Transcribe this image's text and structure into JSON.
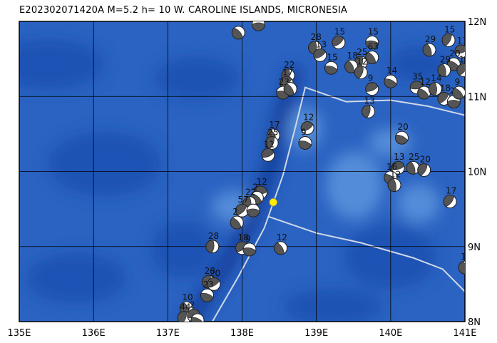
{
  "title": "E202302071420A  M=5.2  h= 10  W. CAROLINE ISLANDS, MICRONESIA",
  "colors": {
    "ocean_deep": "#1a4fb0",
    "ocean_mid": "#2b63c2",
    "ocean_shallow": "#5f97df",
    "trench_line": "#cfd8e8",
    "grid": "#000000",
    "epicenter": "#ffee00"
  },
  "axes": {
    "lon_min": 135,
    "lon_max": 141,
    "lat_min": 8,
    "lat_max": 12,
    "lon_labels": [
      "135E",
      "136E",
      "137E",
      "138E",
      "139E",
      "140E",
      "141E"
    ],
    "lat_labels": [
      "12N",
      "11N",
      "10N",
      "9N",
      "8N"
    ]
  },
  "epicenter": {
    "lon": 138.42,
    "lat": 9.59
  },
  "plate_boundaries": [
    [
      [
        137.6,
        8.0
      ],
      [
        137.95,
        8.6
      ],
      [
        138.3,
        9.25
      ],
      [
        138.55,
        9.95
      ],
      [
        138.72,
        10.6
      ],
      [
        138.85,
        11.12
      ],
      [
        139.4,
        10.93
      ],
      [
        140.0,
        10.95
      ],
      [
        140.5,
        10.87
      ],
      [
        141.0,
        10.75
      ]
    ],
    [
      [
        138.35,
        9.4
      ],
      [
        139.0,
        9.18
      ],
      [
        139.6,
        9.05
      ],
      [
        140.3,
        8.85
      ],
      [
        140.7,
        8.7
      ],
      [
        141.0,
        8.4
      ]
    ]
  ],
  "events": [
    {
      "lon": 138.22,
      "lat": 11.96,
      "label": "16"
    },
    {
      "lon": 137.95,
      "lat": 11.85,
      "label": ""
    },
    {
      "lon": 138.98,
      "lat": 11.65,
      "label": "28"
    },
    {
      "lon": 139.3,
      "lat": 11.72,
      "label": "15"
    },
    {
      "lon": 139.75,
      "lat": 11.72,
      "label": "15"
    },
    {
      "lon": 139.75,
      "lat": 11.52,
      "label": "63"
    },
    {
      "lon": 139.6,
      "lat": 11.45,
      "label": "25"
    },
    {
      "lon": 139.05,
      "lat": 11.55,
      "label": "13"
    },
    {
      "lon": 139.2,
      "lat": 11.38,
      "label": "15"
    },
    {
      "lon": 139.47,
      "lat": 11.4,
      "label": "18"
    },
    {
      "lon": 139.6,
      "lat": 11.32,
      "label": "12"
    },
    {
      "lon": 139.75,
      "lat": 11.1,
      "label": "9"
    },
    {
      "lon": 140.0,
      "lat": 11.2,
      "label": "14"
    },
    {
      "lon": 140.52,
      "lat": 11.62,
      "label": "29"
    },
    {
      "lon": 140.78,
      "lat": 11.75,
      "label": "15"
    },
    {
      "lon": 140.95,
      "lat": 11.6,
      "label": "11"
    },
    {
      "lon": 140.85,
      "lat": 11.43,
      "label": "20"
    },
    {
      "lon": 140.72,
      "lat": 11.35,
      "label": "29"
    },
    {
      "lon": 140.98,
      "lat": 11.35,
      "label": "13"
    },
    {
      "lon": 140.35,
      "lat": 11.12,
      "label": "35"
    },
    {
      "lon": 140.45,
      "lat": 11.05,
      "label": "12"
    },
    {
      "lon": 140.6,
      "lat": 11.1,
      "label": "14"
    },
    {
      "lon": 140.72,
      "lat": 10.97,
      "label": "18"
    },
    {
      "lon": 140.85,
      "lat": 10.93,
      "label": "28"
    },
    {
      "lon": 140.92,
      "lat": 11.05,
      "label": "9"
    },
    {
      "lon": 138.62,
      "lat": 11.28,
      "label": "22"
    },
    {
      "lon": 138.6,
      "lat": 11.18,
      "label": "17"
    },
    {
      "lon": 138.55,
      "lat": 11.05,
      "label": "23"
    },
    {
      "lon": 138.65,
      "lat": 11.1,
      "label": ""
    },
    {
      "lon": 139.7,
      "lat": 10.8,
      "label": "13"
    },
    {
      "lon": 138.88,
      "lat": 10.58,
      "label": "12"
    },
    {
      "lon": 138.85,
      "lat": 10.38,
      "label": "9"
    },
    {
      "lon": 138.42,
      "lat": 10.48,
      "label": "17"
    },
    {
      "lon": 138.4,
      "lat": 10.38,
      "label": "25"
    },
    {
      "lon": 138.35,
      "lat": 10.22,
      "label": "11"
    },
    {
      "lon": 140.15,
      "lat": 10.45,
      "label": "20"
    },
    {
      "lon": 140.3,
      "lat": 10.05,
      "label": "25"
    },
    {
      "lon": 140.45,
      "lat": 10.02,
      "label": "20"
    },
    {
      "lon": 140.1,
      "lat": 10.05,
      "label": "13"
    },
    {
      "lon": 140.0,
      "lat": 9.92,
      "label": "16"
    },
    {
      "lon": 140.05,
      "lat": 9.82,
      "label": "12"
    },
    {
      "lon": 140.8,
      "lat": 9.6,
      "label": "17"
    },
    {
      "lon": 138.25,
      "lat": 9.72,
      "label": "12"
    },
    {
      "lon": 138.2,
      "lat": 9.65,
      "label": "2"
    },
    {
      "lon": 138.1,
      "lat": 9.58,
      "label": "22"
    },
    {
      "lon": 138.0,
      "lat": 9.48,
      "label": "57"
    },
    {
      "lon": 138.15,
      "lat": 9.48,
      "label": ""
    },
    {
      "lon": 137.93,
      "lat": 9.32,
      "label": "2"
    },
    {
      "lon": 137.6,
      "lat": 9.0,
      "label": "28"
    },
    {
      "lon": 138.0,
      "lat": 8.98,
      "label": "18"
    },
    {
      "lon": 138.1,
      "lat": 8.96,
      "label": "9"
    },
    {
      "lon": 138.52,
      "lat": 8.98,
      "label": "12"
    },
    {
      "lon": 137.55,
      "lat": 8.53,
      "label": "28"
    },
    {
      "lon": 137.62,
      "lat": 8.5,
      "label": "20"
    },
    {
      "lon": 137.53,
      "lat": 8.35,
      "label": "23"
    },
    {
      "lon": 137.25,
      "lat": 8.18,
      "label": "10"
    },
    {
      "lon": 137.22,
      "lat": 8.05,
      "label": "44"
    },
    {
      "lon": 137.35,
      "lat": 8.08,
      "label": "2"
    },
    {
      "lon": 137.4,
      "lat": 8.02,
      "label": ""
    },
    {
      "lon": 141.0,
      "lat": 8.72,
      "label": "15"
    }
  ]
}
